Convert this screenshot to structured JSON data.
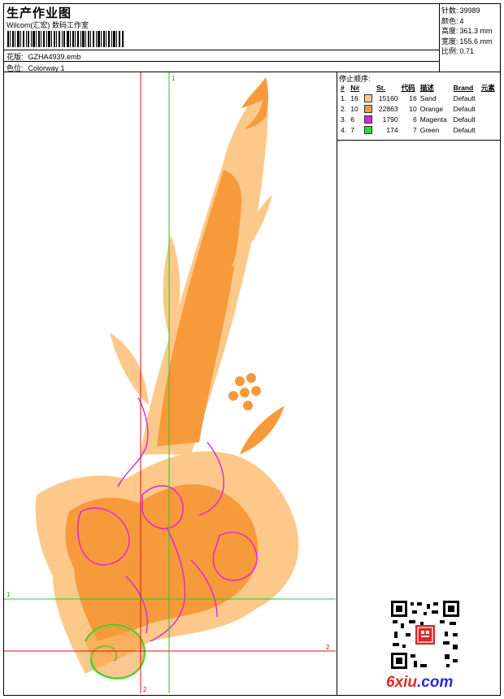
{
  "header": {
    "title": "生产作业图",
    "subtitle": "Wilcom(汇宏) 数码工作室",
    "design_label": "花版:",
    "design_value": "GZHA4939.emb",
    "colorway_label": "色位:",
    "colorway_value": "Colorway 1"
  },
  "stats": [
    {
      "label": "针数:",
      "value": "39989"
    },
    {
      "label": "颜色:",
      "value": "4"
    },
    {
      "label": "高度:",
      "value": "361.3 mm"
    },
    {
      "label": "宽度:",
      "value": "155.6 mm"
    },
    {
      "label": "比例:",
      "value": "0.71"
    }
  ],
  "colors_table": {
    "caption": "停止顺序:",
    "headers": [
      "#",
      "N#",
      "St.",
      "代码",
      "描述",
      "Brand",
      "元素"
    ],
    "rows": [
      {
        "idx": "1.",
        "n": "16",
        "swatch": "#FDC98A",
        "st": "15160",
        "code": "16",
        "desc": "Sand",
        "brand": "Default"
      },
      {
        "idx": "2.",
        "n": "10",
        "swatch": "#F79A3C",
        "st": "22863",
        "code": "10",
        "desc": "Orange",
        "brand": "Default"
      },
      {
        "idx": "3.",
        "n": "6",
        "swatch": "#E020E0",
        "st": "1790",
        "code": "6",
        "desc": "Magenta",
        "brand": "Default"
      },
      {
        "idx": "4.",
        "n": "7",
        "swatch": "#22E022",
        "st": "174",
        "code": "7",
        "desc": "Green",
        "brand": "Default"
      }
    ]
  },
  "guides": {
    "green_label_v": "1",
    "green_label_h": "1",
    "red_label_v": "2",
    "red_label_h": "2",
    "green_color": "#22cc22",
    "red_color": "#dd1111"
  },
  "watermark": {
    "site_a": "6xiu",
    "site_b": ".com"
  },
  "palette": {
    "sand": "#FDC98A",
    "orange": "#F79A3C",
    "magenta": "#E020E0",
    "green": "#22E022"
  }
}
